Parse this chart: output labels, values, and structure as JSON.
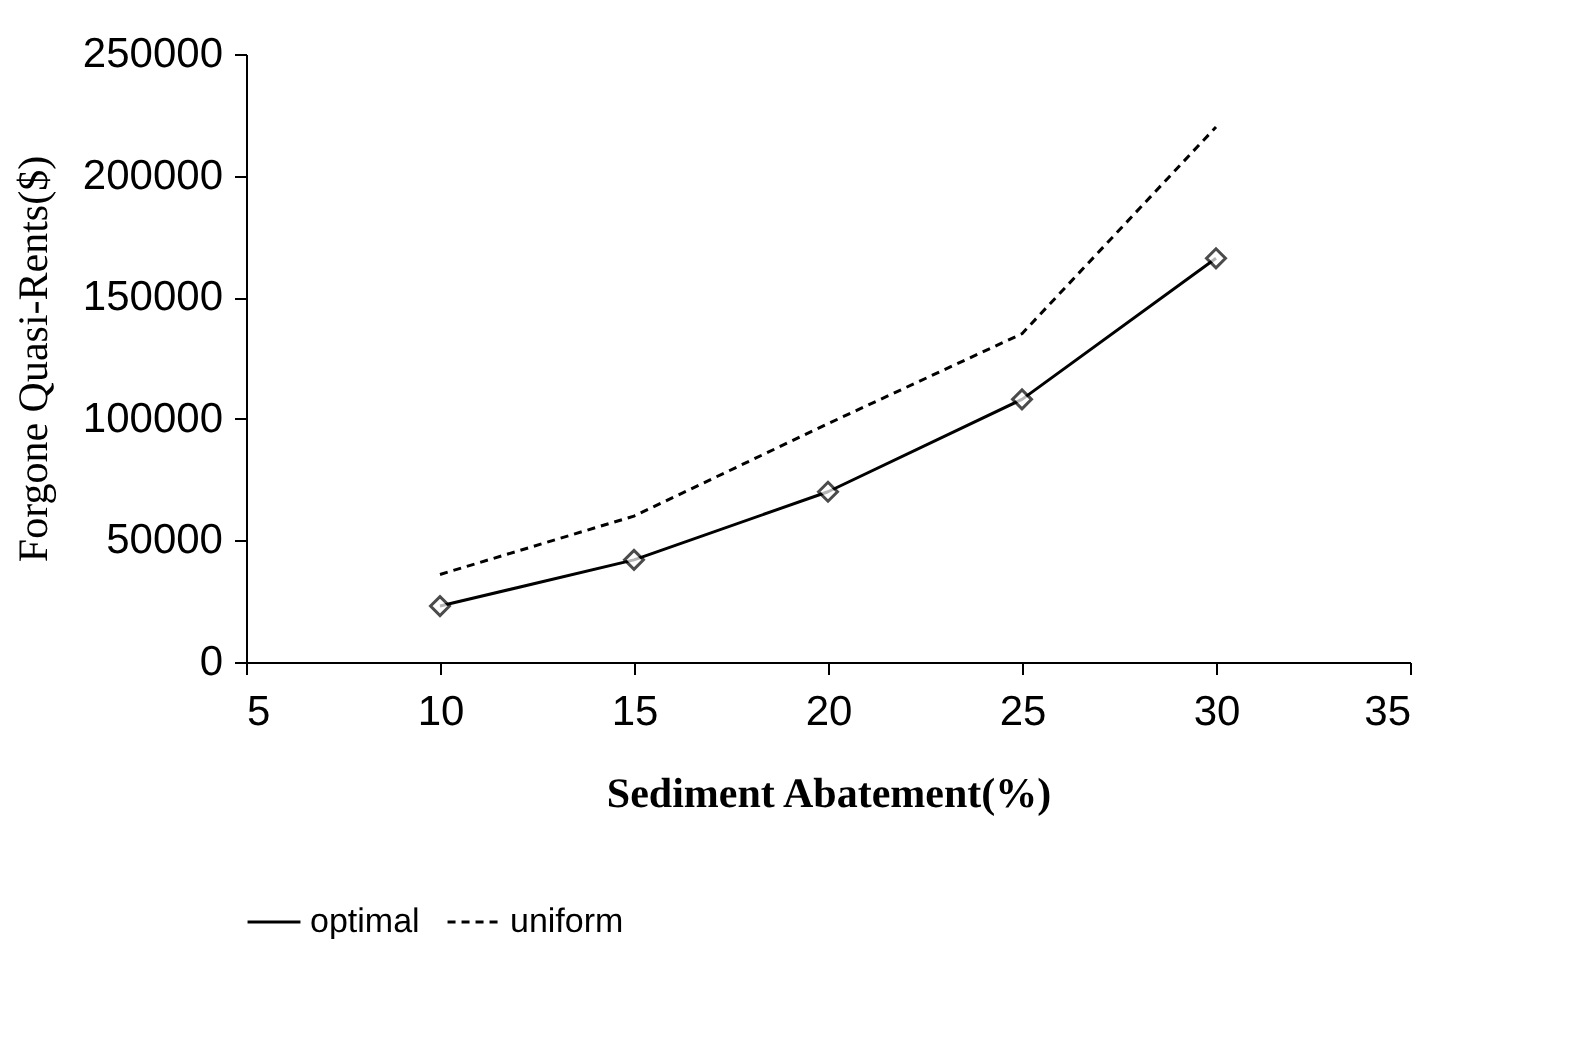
{
  "chart_data": {
    "type": "line",
    "xlabel": "Sediment Abatement(%)",
    "ylabel": "Forgone Quasi-Rents($)",
    "x": [
      10,
      15,
      20,
      25,
      30
    ],
    "series": [
      {
        "name": "optimal",
        "color": "#000000",
        "values": [
          23000,
          42000,
          70000,
          108000,
          166000
        ],
        "marker": "diamond",
        "line_style": "solid"
      },
      {
        "name": "uniform",
        "color": "#000000",
        "values": [
          36000,
          60000,
          98000,
          135000,
          220000
        ],
        "marker": "none",
        "line_style": "dashed"
      }
    ],
    "xlim": [
      5,
      35
    ],
    "xticks": [
      5,
      10,
      15,
      20,
      25,
      30,
      35
    ],
    "ylim": [
      0,
      250000
    ],
    "yticks": [
      0,
      50000,
      100000,
      150000,
      200000,
      250000
    ],
    "grid": false,
    "legend": "bottom"
  }
}
